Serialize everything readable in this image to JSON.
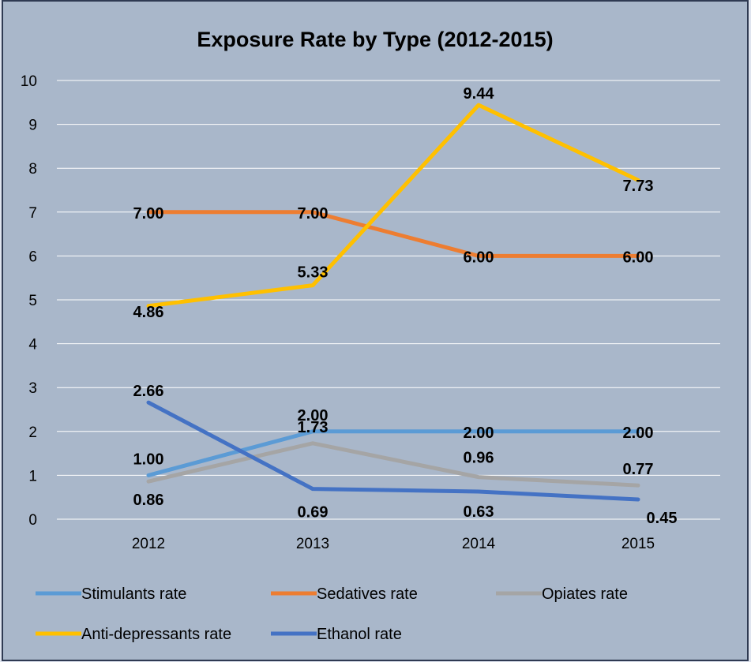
{
  "chart_data": {
    "type": "line",
    "title": "Exposure Rate by Type (2012-2015)",
    "xlabel": "",
    "ylabel": "",
    "categories": [
      "2012",
      "2013",
      "2014",
      "2015"
    ],
    "ylim": [
      0,
      10
    ],
    "yticks": [
      0,
      1,
      2,
      3,
      4,
      5,
      6,
      7,
      8,
      9,
      10
    ],
    "grid": true,
    "legend_position": "bottom",
    "series": [
      {
        "name": "Stimulants rate",
        "color": "#5b9bd5",
        "values": [
          1.0,
          2.0,
          2.0,
          2.0
        ],
        "labels": [
          "1.00",
          "2.00",
          "2.00",
          "2.00"
        ]
      },
      {
        "name": "Sedatives rate",
        "color": "#ed7d31",
        "values": [
          7.0,
          7.0,
          6.0,
          6.0
        ],
        "labels": [
          "7.00",
          "7.00",
          "6.00",
          "6.00"
        ]
      },
      {
        "name": "Opiates rate",
        "color": "#a5a5a5",
        "values": [
          0.86,
          1.73,
          0.96,
          0.77
        ],
        "labels": [
          "0.86",
          "1.73",
          "0.96",
          "0.77"
        ]
      },
      {
        "name": "Anti-depressants rate",
        "color": "#ffc000",
        "values": [
          4.86,
          5.33,
          9.44,
          7.73
        ],
        "labels": [
          "4.86",
          "5.33",
          "9.44",
          "7.73"
        ]
      },
      {
        "name": "Ethanol rate",
        "color": "#4472c4",
        "values": [
          2.66,
          0.69,
          0.63,
          0.45
        ],
        "labels": [
          "2.66",
          "0.69",
          "0.63",
          "0.45"
        ]
      }
    ]
  },
  "colors": {
    "plot_background": "#a9b7ca",
    "gridline": "#ffffff",
    "frame_border": "#2f3a52"
  }
}
